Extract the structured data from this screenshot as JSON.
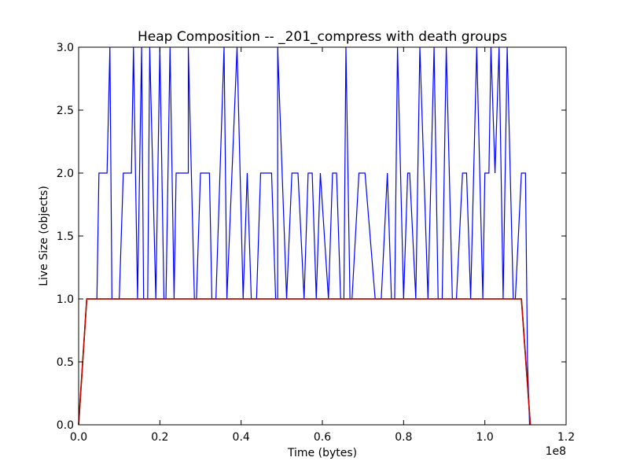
{
  "chart_data": {
    "type": "line",
    "title": "Heap Composition -- _201_compress with death groups",
    "xlabel": "Time (bytes)",
    "ylabel": "Live Size (objects)",
    "x_multiplier": "1e8",
    "xlim": [
      0,
      1.2
    ],
    "ylim": [
      0,
      3.0
    ],
    "x_ticks": [
      "0.0",
      "0.2",
      "0.4",
      "0.6",
      "0.8",
      "1.0",
      "1.2"
    ],
    "y_ticks": [
      "0.0",
      "0.5",
      "1.0",
      "1.5",
      "2.0",
      "2.5",
      "3.0"
    ],
    "grid": false,
    "series": [
      {
        "color": "#0000ff",
        "x": [
          0.0,
          0.01,
          0.02,
          0.035,
          0.045,
          0.05,
          0.06,
          0.07,
          0.077,
          0.082,
          0.09,
          0.1,
          0.11,
          0.115,
          0.13,
          0.135,
          0.145,
          0.155,
          0.16,
          0.17,
          0.175,
          0.19,
          0.2,
          0.21,
          0.215,
          0.225,
          0.235,
          0.24,
          0.255,
          0.27,
          0.27,
          0.285,
          0.29,
          0.3,
          0.312,
          0.322,
          0.328,
          0.338,
          0.358,
          0.365,
          0.39,
          0.405,
          0.415,
          0.425,
          0.438,
          0.448,
          0.455,
          0.475,
          0.485,
          0.49,
          0.49,
          0.512,
          0.525,
          0.54,
          0.555,
          0.565,
          0.575,
          0.585,
          0.595,
          0.615,
          0.625,
          0.635,
          0.645,
          0.653,
          0.658,
          0.668,
          0.673,
          0.69,
          0.705,
          0.73,
          0.745,
          0.76,
          0.77,
          0.778,
          0.785,
          0.8,
          0.81,
          0.815,
          0.83,
          0.84,
          0.86,
          0.875,
          0.885,
          0.895,
          0.905,
          0.92,
          0.93,
          0.945,
          0.955,
          0.965,
          0.98,
          0.995,
          1.0,
          1.01,
          1.015,
          1.025,
          1.035,
          1.045,
          1.055,
          1.07,
          1.075,
          1.09,
          1.1,
          1.105,
          1.11
        ],
        "y": [
          0.0,
          0.5,
          1.0,
          1.0,
          1.0,
          2.0,
          2.0,
          2.0,
          3.0,
          1.0,
          1.0,
          1.0,
          2.0,
          2.0,
          2.0,
          3.0,
          1.0,
          3.0,
          1.0,
          1.0,
          3.0,
          1.0,
          3.0,
          1.0,
          1.0,
          3.0,
          1.0,
          2.0,
          2.0,
          2.0,
          3.0,
          1.0,
          1.0,
          2.0,
          2.0,
          2.0,
          1.0,
          1.0,
          3.0,
          1.0,
          3.0,
          1.0,
          2.0,
          1.0,
          1.0,
          2.0,
          2.0,
          2.0,
          1.0,
          1.0,
          3.0,
          1.0,
          2.0,
          2.0,
          1.0,
          2.0,
          2.0,
          1.0,
          2.0,
          1.0,
          2.0,
          2.0,
          1.0,
          1.0,
          3.0,
          1.0,
          1.0,
          2.0,
          2.0,
          1.0,
          1.0,
          2.0,
          1.0,
          1.0,
          3.0,
          1.0,
          2.0,
          2.0,
          1.0,
          3.0,
          1.0,
          3.0,
          1.0,
          1.0,
          3.0,
          1.0,
          1.0,
          2.0,
          2.0,
          1.0,
          3.0,
          1.0,
          2.0,
          2.0,
          3.0,
          2.0,
          3.0,
          1.0,
          3.0,
          1.0,
          1.0,
          2.0,
          2.0,
          0.5,
          0.0
        ]
      },
      {
        "color": "#008000",
        "x": [
          0.0,
          0.02,
          1.09,
          1.112
        ],
        "y": [
          0.0,
          1.0,
          1.0,
          0.0
        ]
      },
      {
        "color": "#cc0000",
        "x": [
          0.0,
          0.02,
          1.09,
          1.112
        ],
        "y": [
          0.0,
          1.0,
          1.0,
          0.0
        ]
      }
    ]
  }
}
